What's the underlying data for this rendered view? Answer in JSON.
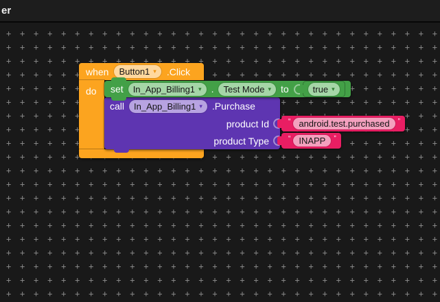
{
  "header": {
    "partial_title": "er"
  },
  "icons": {
    "dropdown_arrow": "▾"
  },
  "punctuation": {
    "open_quote": "“",
    "close_quote": "”",
    "property_separator": "."
  },
  "colors": {
    "canvas_bg": "#191919",
    "event_block": "#FCA41F",
    "set_block": "#43A047",
    "call_block": "#5E35B1",
    "text_block": "#E91E63"
  },
  "blocks": {
    "when": {
      "keyword": "when",
      "component": "Button1",
      "event": ".Click",
      "do_label": "do"
    },
    "set": {
      "keyword": "set",
      "component": "In_App_Billing1",
      "property": "Test Mode",
      "to_label": "to",
      "value": "true"
    },
    "call": {
      "keyword": "call",
      "component": "In_App_Billing1",
      "method": ".Purchase",
      "params": [
        {
          "label": "product Id",
          "value": "android.test.purchased"
        },
        {
          "label": "product Type",
          "value": "INAPP"
        }
      ]
    }
  }
}
